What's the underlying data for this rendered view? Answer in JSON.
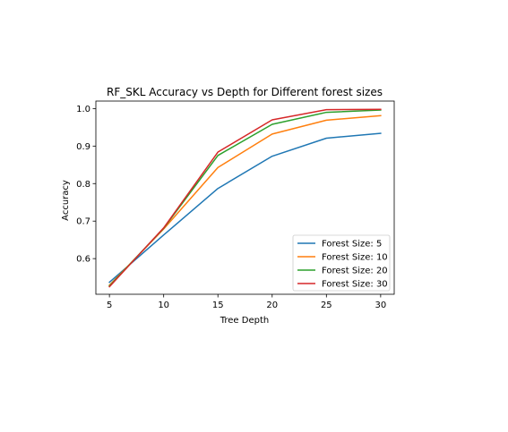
{
  "chart_data": {
    "type": "line",
    "title": "RF_SKL Accuracy vs Depth for Different forest sizes",
    "xlabel": "Tree Depth",
    "ylabel": "Accuracy",
    "x": [
      5,
      10,
      15,
      20,
      25,
      30
    ],
    "xticks": [
      "5",
      "10",
      "15",
      "20",
      "25",
      "30"
    ],
    "yticks": [
      "0.6",
      "0.7",
      "0.8",
      "0.9",
      "1.0"
    ],
    "xlim": [
      3.75,
      31.25
    ],
    "ylim": [
      0.505,
      1.02
    ],
    "grid": false,
    "legend_position": "lower-right",
    "series": [
      {
        "name": "Forest Size: 5",
        "color": "#1f77b4",
        "values": [
          0.537,
          0.663,
          0.787,
          0.873,
          0.921,
          0.934
        ]
      },
      {
        "name": "Forest Size: 10",
        "color": "#ff7f0e",
        "values": [
          0.529,
          0.679,
          0.843,
          0.932,
          0.969,
          0.981
        ]
      },
      {
        "name": "Forest Size: 20",
        "color": "#2ca02c",
        "values": [
          0.527,
          0.681,
          0.875,
          0.958,
          0.99,
          0.996
        ]
      },
      {
        "name": "Forest Size: 30",
        "color": "#d62728",
        "values": [
          0.525,
          0.682,
          0.884,
          0.97,
          0.997,
          0.998
        ]
      }
    ]
  }
}
